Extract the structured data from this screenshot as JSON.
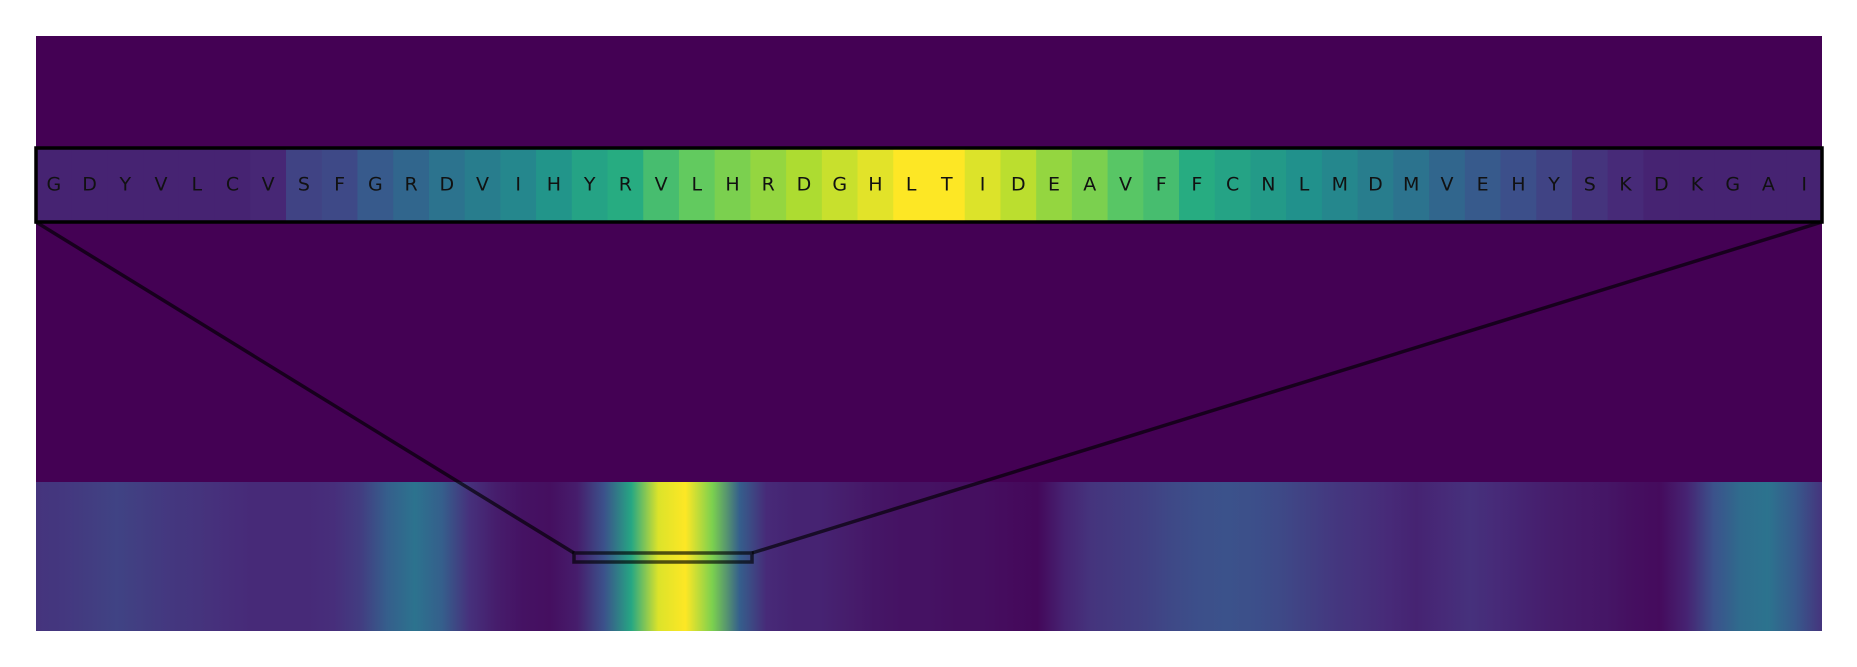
{
  "chart_data": {
    "type": "heatmap",
    "colormap": "viridis",
    "background_color": "#440154",
    "zoom_window": {
      "residues": [
        "G",
        "D",
        "Y",
        "V",
        "L",
        "C",
        "V",
        "S",
        "F",
        "G",
        "R",
        "D",
        "V",
        "I",
        "H",
        "Y",
        "R",
        "V",
        "L",
        "H",
        "R",
        "D",
        "G",
        "H",
        "L",
        "T",
        "I",
        "D",
        "E",
        "A",
        "V",
        "F",
        "F",
        "C",
        "N",
        "L",
        "M",
        "D",
        "M",
        "V",
        "E",
        "H",
        "Y",
        "S",
        "K",
        "D",
        "K",
        "G",
        "A",
        "I"
      ],
      "values": [
        0.1,
        0.1,
        0.1,
        0.1,
        0.1,
        0.1,
        0.11,
        0.2,
        0.22,
        0.28,
        0.33,
        0.38,
        0.42,
        0.46,
        0.52,
        0.58,
        0.62,
        0.7,
        0.76,
        0.8,
        0.84,
        0.88,
        0.92,
        0.96,
        1.0,
        1.0,
        0.95,
        0.9,
        0.84,
        0.8,
        0.74,
        0.7,
        0.62,
        0.58,
        0.54,
        0.5,
        0.46,
        0.42,
        0.38,
        0.33,
        0.28,
        0.24,
        0.2,
        0.15,
        0.12,
        0.1,
        0.1,
        0.1,
        0.1,
        0.1
      ]
    },
    "full_sequence": {
      "values": [
        0.15,
        0.16,
        0.18,
        0.2,
        0.18,
        0.16,
        0.15,
        0.13,
        0.12,
        0.12,
        0.12,
        0.13,
        0.18,
        0.3,
        0.38,
        0.3,
        0.14,
        0.08,
        0.05,
        0.04,
        0.08,
        0.25,
        0.6,
        0.95,
        1.0,
        0.8,
        0.3,
        0.12,
        0.1,
        0.1,
        0.08,
        0.06,
        0.05,
        0.05,
        0.04,
        0.04,
        0.03,
        0.02,
        0.1,
        0.15,
        0.17,
        0.19,
        0.22,
        0.24,
        0.25,
        0.24,
        0.22,
        0.19,
        0.16,
        0.14,
        0.12,
        0.1,
        0.12,
        0.14,
        0.12,
        0.1,
        0.08,
        0.07,
        0.06,
        0.04,
        0.03,
        0.1,
        0.25,
        0.35,
        0.38,
        0.28,
        0.15
      ],
      "zoom_start_index": 20,
      "zoom_end_index": 28
    }
  }
}
